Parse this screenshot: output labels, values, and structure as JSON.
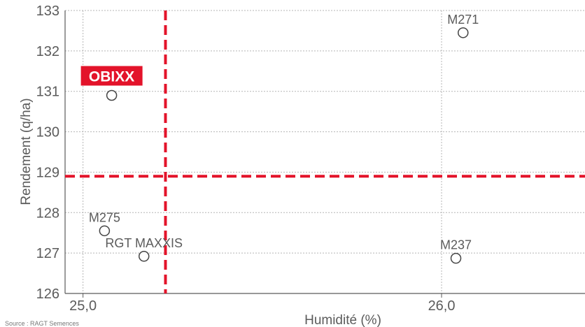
{
  "chart_data": {
    "type": "scatter",
    "title": "",
    "xlabel": "Humidité (%)",
    "ylabel": "Rendement (q/ha)",
    "xlim": [
      24.95,
      26.4
    ],
    "ylim": [
      126,
      133
    ],
    "x_ticks": [
      {
        "value": 25.0,
        "label": "25,0"
      },
      {
        "value": 26.0,
        "label": "26,0"
      }
    ],
    "y_ticks": [
      126,
      127,
      128,
      129,
      130,
      131,
      132,
      133
    ],
    "grid": true,
    "points": [
      {
        "name": "M271",
        "x": 26.06,
        "y": 132.45,
        "highlight": false
      },
      {
        "name": "OBIXX",
        "x": 25.08,
        "y": 130.9,
        "highlight": true
      },
      {
        "name": "M275",
        "x": 25.06,
        "y": 127.55,
        "highlight": false
      },
      {
        "name": "RGT MAXXIS",
        "x": 25.17,
        "y": 126.92,
        "highlight": false
      },
      {
        "name": "M237",
        "x": 26.04,
        "y": 126.87,
        "highlight": false
      }
    ],
    "reference_lines": {
      "x": 25.23,
      "y": 128.9
    },
    "colors": {
      "reference": "#e3132a",
      "highlight_bg": "#e3132a",
      "marker": "#444444",
      "grid": "#b5b5b5",
      "axis": "#5b5b5b"
    }
  },
  "source_text": "Source : RAGT Semences"
}
